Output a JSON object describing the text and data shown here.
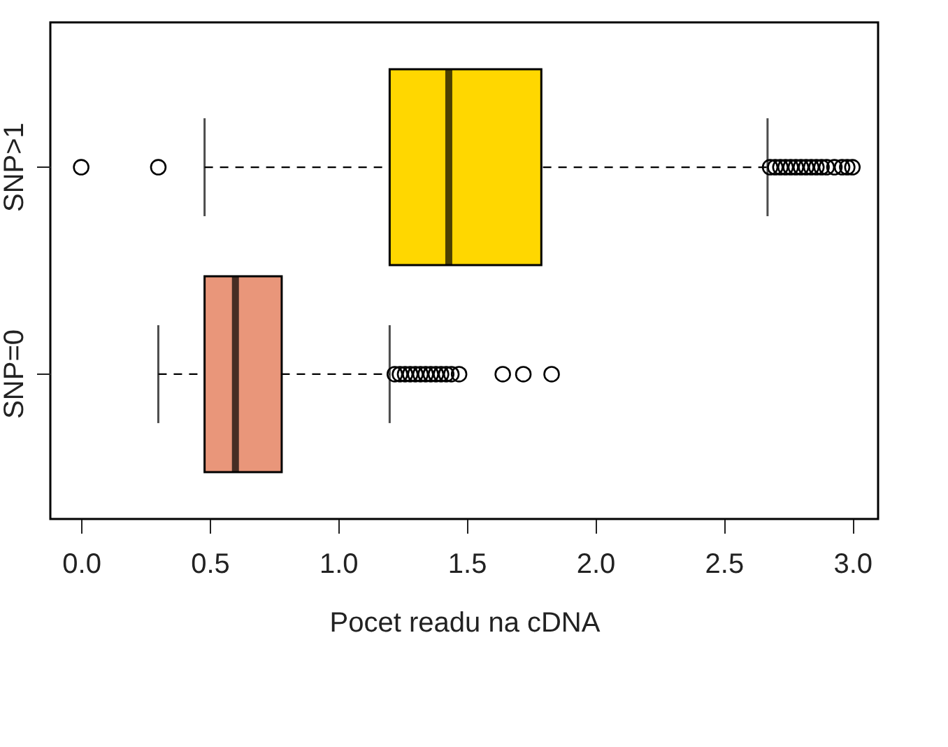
{
  "chart_data": {
    "type": "box",
    "orientation": "horizontal",
    "xlabel": "Pocet readu na cDNA",
    "categories": [
      "SNP>1",
      "SNP=0"
    ],
    "colors": [
      "#ffd700",
      "#e9967a"
    ],
    "boxes": [
      {
        "low": 0.48,
        "q1": 1.2,
        "median": 1.43,
        "q3": 1.79,
        "high": 2.67,
        "outliers": [
          0.0,
          0.3,
          2.68,
          2.7,
          2.72,
          2.74,
          2.76,
          2.78,
          2.8,
          2.82,
          2.84,
          2.86,
          2.88,
          2.9,
          2.93,
          2.96,
          2.98,
          3.0
        ]
      },
      {
        "low": 0.3,
        "q1": 0.48,
        "median": 0.6,
        "q3": 0.78,
        "high": 1.2,
        "outliers": [
          1.22,
          1.24,
          1.26,
          1.28,
          1.3,
          1.32,
          1.34,
          1.36,
          1.38,
          1.4,
          1.42,
          1.44,
          1.47,
          1.64,
          1.72,
          1.83
        ]
      }
    ],
    "xlim": [
      -0.12,
      3.1
    ],
    "xticks": [
      {
        "value": 0,
        "label": "0.0"
      },
      0.5,
      {
        "value": 1,
        "label": "1.0"
      },
      1.5,
      {
        "value": 2,
        "label": "2.0"
      },
      2.5,
      {
        "value": 3,
        "label": "3.0"
      }
    ],
    "marker": "circle",
    "line_style": "dashed",
    "grid": false
  }
}
